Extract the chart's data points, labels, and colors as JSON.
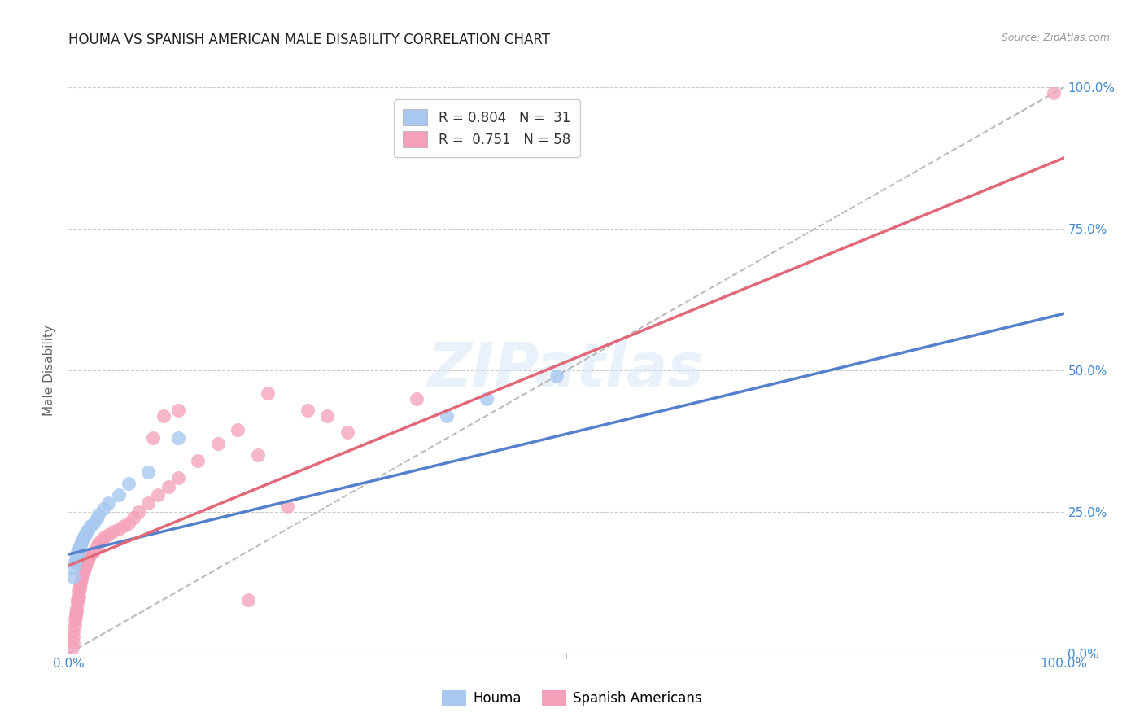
{
  "title": "HOUMA VS SPANISH AMERICAN MALE DISABILITY CORRELATION CHART",
  "source": "Source: ZipAtlas.com",
  "ylabel": "Male Disability",
  "xlim": [
    0.0,
    1.0
  ],
  "ylim": [
    0.0,
    1.0
  ],
  "ytick_positions": [
    0.0,
    0.25,
    0.5,
    0.75,
    1.0
  ],
  "ytick_labels_right": [
    "0.0%",
    "25.0%",
    "50.0%",
    "75.0%",
    "100.0%"
  ],
  "xtick_labels": [
    "0.0%",
    "100.0%"
  ],
  "watermark": "ZIPatlas",
  "houma_R": 0.804,
  "houma_N": 31,
  "spanish_R": 0.751,
  "spanish_N": 58,
  "houma_color": "#a8c8f0",
  "spanish_color": "#f4a0b8",
  "houma_line_color": "#5580cc",
  "spanish_line_color": "#e06878",
  "background_color": "#ffffff",
  "grid_color": "#cccccc",
  "title_fontsize": 12,
  "axis_label_color": "#4488cc",
  "houma_line_x0": 0.0,
  "houma_line_y0": 0.175,
  "houma_line_x1": 1.0,
  "houma_line_y1": 0.6,
  "spanish_line_x0": 0.0,
  "spanish_line_y0": 0.155,
  "spanish_line_x1": 1.0,
  "spanish_line_y1": 0.875,
  "houma_points_x": [
    0.005,
    0.005,
    0.006,
    0.007,
    0.008,
    0.008,
    0.009,
    0.01,
    0.01,
    0.011,
    0.012,
    0.013,
    0.014,
    0.015,
    0.016,
    0.017,
    0.018,
    0.02,
    0.022,
    0.025,
    0.028,
    0.03,
    0.035,
    0.04,
    0.05,
    0.06,
    0.08,
    0.11,
    0.38,
    0.42,
    0.49
  ],
  "houma_points_y": [
    0.135,
    0.15,
    0.16,
    0.165,
    0.17,
    0.175,
    0.178,
    0.18,
    0.185,
    0.19,
    0.192,
    0.195,
    0.2,
    0.205,
    0.208,
    0.21,
    0.215,
    0.22,
    0.225,
    0.23,
    0.238,
    0.245,
    0.255,
    0.265,
    0.28,
    0.3,
    0.32,
    0.38,
    0.42,
    0.45,
    0.49
  ],
  "spanish_points_x": [
    0.004,
    0.005,
    0.005,
    0.005,
    0.006,
    0.006,
    0.007,
    0.007,
    0.008,
    0.008,
    0.009,
    0.009,
    0.01,
    0.01,
    0.011,
    0.011,
    0.012,
    0.013,
    0.013,
    0.014,
    0.015,
    0.016,
    0.017,
    0.018,
    0.019,
    0.02,
    0.022,
    0.025,
    0.028,
    0.03,
    0.033,
    0.036,
    0.04,
    0.045,
    0.05,
    0.055,
    0.06,
    0.065,
    0.07,
    0.08,
    0.09,
    0.1,
    0.11,
    0.13,
    0.15,
    0.17,
    0.19,
    0.22,
    0.24,
    0.26,
    0.28,
    0.11,
    0.085,
    0.095,
    0.35,
    0.2,
    0.99,
    0.18
  ],
  "spanish_points_y": [
    0.01,
    0.02,
    0.03,
    0.04,
    0.05,
    0.06,
    0.065,
    0.07,
    0.075,
    0.08,
    0.09,
    0.095,
    0.1,
    0.11,
    0.115,
    0.12,
    0.125,
    0.13,
    0.135,
    0.14,
    0.145,
    0.15,
    0.155,
    0.16,
    0.165,
    0.17,
    0.175,
    0.18,
    0.19,
    0.195,
    0.2,
    0.205,
    0.21,
    0.215,
    0.22,
    0.225,
    0.23,
    0.24,
    0.25,
    0.265,
    0.28,
    0.295,
    0.31,
    0.34,
    0.37,
    0.395,
    0.35,
    0.26,
    0.43,
    0.42,
    0.39,
    0.43,
    0.38,
    0.42,
    0.45,
    0.46,
    0.99,
    0.095
  ]
}
